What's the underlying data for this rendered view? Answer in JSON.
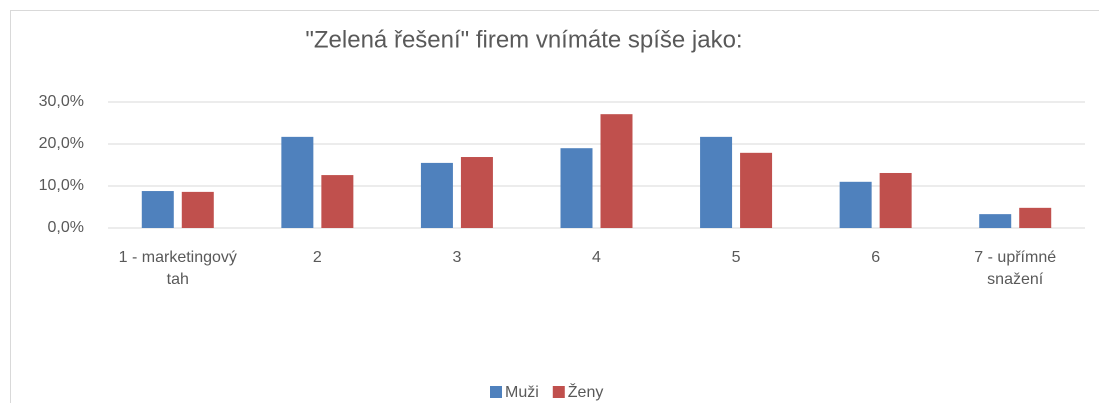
{
  "chart_data": {
    "type": "bar",
    "title": "\"Zelená řešení\" firem vnímáte spíše jako:",
    "categories": [
      "1 - marketingový tah",
      "2",
      "3",
      "4",
      "5",
      "6",
      "7 - upřímné snažení"
    ],
    "series": [
      {
        "name": "Muži",
        "color": "#4f81bd",
        "values": [
          8.8,
          21.7,
          15.5,
          19.0,
          21.7,
          11.0,
          3.3
        ]
      },
      {
        "name": "Ženy",
        "color": "#c0504d",
        "values": [
          8.6,
          12.6,
          16.9,
          27.1,
          17.9,
          13.1,
          4.8
        ]
      }
    ],
    "ylim": [
      0,
      30
    ],
    "yticks": [
      {
        "value": 0,
        "label": "0,0%"
      },
      {
        "value": 10,
        "label": "10,0%"
      },
      {
        "value": 20,
        "label": "20,0%"
      },
      {
        "value": 30,
        "label": "30,0%"
      }
    ],
    "grid": true,
    "legend": "bottom"
  }
}
